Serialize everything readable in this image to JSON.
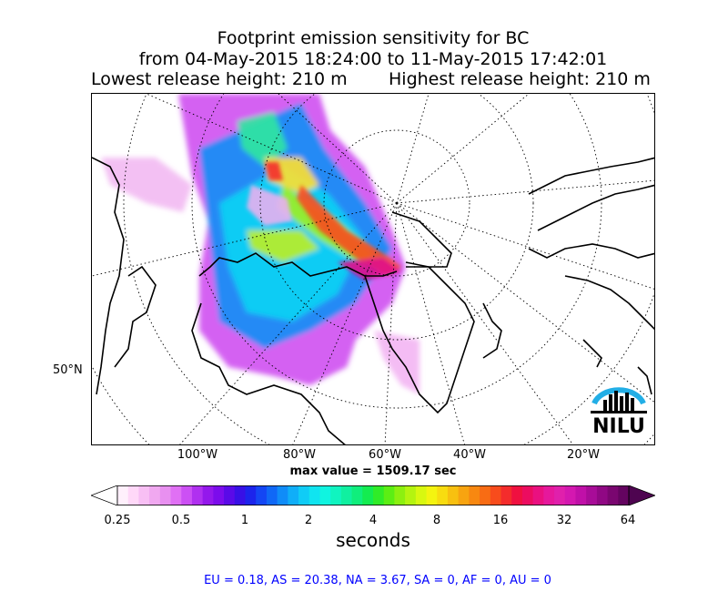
{
  "title": {
    "line1": "Footprint emission sensitivity for BC",
    "line2": "from 04-May-2015 18:24:00 to 11-May-2015 17:42:01",
    "lowest": "Lowest release height: 210 m",
    "highest": "Highest release height: 210 m"
  },
  "map": {
    "projection": "polar stereographic (north)",
    "lon_labels": [
      "100°W",
      "80°W",
      "60°W",
      "40°W",
      "20°W"
    ],
    "lat_labels": [
      "50°N"
    ],
    "logo_text": "NILU",
    "gridlines": "dotted"
  },
  "max_value": "max value = 1509.17 sec",
  "colorbar": {
    "tick_labels": [
      "0.25",
      "0.5",
      "1",
      "2",
      "4",
      "8",
      "16",
      "32",
      "64"
    ],
    "units": "seconds",
    "colors": [
      "#fff0fc",
      "#ffd8f8",
      "#f8bff4",
      "#f0a8f0",
      "#e890f0",
      "#e070f4",
      "#cc50f4",
      "#b030f0",
      "#9418ec",
      "#7c0cec",
      "#5a0ae8",
      "#3810e6",
      "#1c24ec",
      "#1446f4",
      "#1068f6",
      "#108cf8",
      "#10aef8",
      "#10ccf6",
      "#10e4f0",
      "#10f4e0",
      "#10f4c0",
      "#10f0a0",
      "#10ee7c",
      "#14ec50",
      "#30ec28",
      "#5cee14",
      "#8cf010",
      "#b4f410",
      "#d8f810",
      "#f4f410",
      "#f8dc10",
      "#f8c010",
      "#f8a410",
      "#f88810",
      "#f86c14",
      "#f84c1c",
      "#f42c2c",
      "#f01040",
      "#ec0c60",
      "#ea1080",
      "#e6189c",
      "#e020ac",
      "#d418b0",
      "#c010a8",
      "#a80c98",
      "#900884",
      "#7a0670",
      "#640460"
    ]
  },
  "regions_text": "EU = 0.18,  AS = 20.38,  NA = 3.67,  SA = 0,  AF = 0,  AU = 0"
}
